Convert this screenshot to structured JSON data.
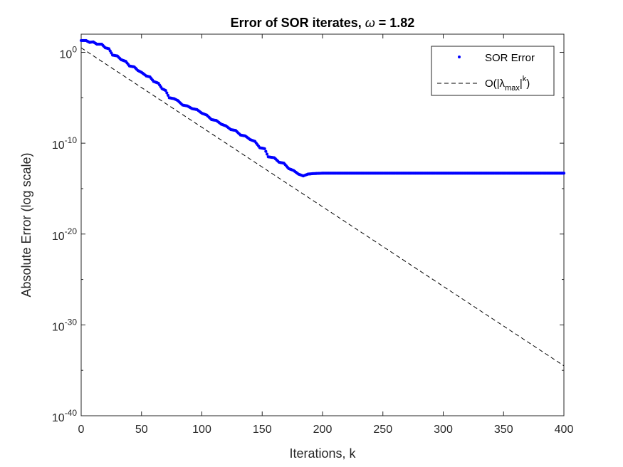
{
  "chart_data": {
    "type": "line",
    "title_prefix": "Error of SOR iterates, ",
    "title_symbol": "ω",
    "title_suffix": " = 1.82",
    "xlabel": "Iterations, k",
    "ylabel": "Absolute Error (log scale)",
    "xlim": [
      0,
      400
    ],
    "ylim_log10": [
      -40,
      2
    ],
    "yscale": "log",
    "xticks": [
      0,
      50,
      100,
      150,
      200,
      250,
      300,
      350,
      400
    ],
    "yticks": [
      {
        "base": "10",
        "exp": "-40",
        "value": -40
      },
      {
        "base": "10",
        "exp": "-30",
        "value": -30
      },
      {
        "base": "10",
        "exp": "-20",
        "value": -20
      },
      {
        "base": "10",
        "exp": "-10",
        "value": -10
      },
      {
        "base": "10",
        "exp": "0",
        "value": 0
      }
    ],
    "grid": false,
    "legend_position": "top-right",
    "series": [
      {
        "name": "SOR Error",
        "style": "dots",
        "color": "#0000ff",
        "x_log10y": [
          [
            0,
            1.3
          ],
          [
            4,
            1.3
          ],
          [
            7,
            1.1
          ],
          [
            10,
            1.15
          ],
          [
            13,
            0.9
          ],
          [
            17,
            0.9
          ],
          [
            20,
            0.5
          ],
          [
            23,
            0.4
          ],
          [
            26,
            -0.3
          ],
          [
            30,
            -0.4
          ],
          [
            33,
            -0.8
          ],
          [
            37,
            -1.0
          ],
          [
            40,
            -1.5
          ],
          [
            44,
            -1.6
          ],
          [
            47,
            -2.0
          ],
          [
            50,
            -2.2
          ],
          [
            54,
            -2.6
          ],
          [
            57,
            -2.7
          ],
          [
            60,
            -3.2
          ],
          [
            64,
            -3.4
          ],
          [
            67,
            -4.0
          ],
          [
            70,
            -4.2
          ],
          [
            73,
            -5.0
          ],
          [
            77,
            -5.1
          ],
          [
            80,
            -5.3
          ],
          [
            84,
            -5.8
          ],
          [
            88,
            -5.9
          ],
          [
            92,
            -6.2
          ],
          [
            96,
            -6.3
          ],
          [
            100,
            -6.7
          ],
          [
            104,
            -6.9
          ],
          [
            108,
            -7.4
          ],
          [
            112,
            -7.5
          ],
          [
            116,
            -7.9
          ],
          [
            120,
            -8.1
          ],
          [
            124,
            -8.5
          ],
          [
            128,
            -8.6
          ],
          [
            132,
            -9.1
          ],
          [
            136,
            -9.2
          ],
          [
            140,
            -9.6
          ],
          [
            144,
            -9.8
          ],
          [
            148,
            -10.5
          ],
          [
            152,
            -10.6
          ],
          [
            155,
            -11.5
          ],
          [
            160,
            -11.6
          ],
          [
            164,
            -12.1
          ],
          [
            168,
            -12.2
          ],
          [
            172,
            -12.8
          ],
          [
            176,
            -13.0
          ],
          [
            180,
            -13.4
          ],
          [
            184,
            -13.6
          ],
          [
            188,
            -13.4
          ],
          [
            192,
            -13.35
          ],
          [
            200,
            -13.3
          ],
          [
            250,
            -13.3
          ],
          [
            300,
            -13.3
          ],
          [
            350,
            -13.3
          ],
          [
            400,
            -13.3
          ]
        ]
      },
      {
        "name": "O(|λmax|^k)",
        "legend_main": "O(|λ",
        "legend_sub": "max",
        "legend_pipe": "|",
        "legend_sup": "k",
        "legend_close": ")",
        "style": "dashed",
        "color": "#000000",
        "x_log10y": [
          [
            0,
            0.5
          ],
          [
            400,
            -34.5
          ]
        ]
      }
    ]
  }
}
